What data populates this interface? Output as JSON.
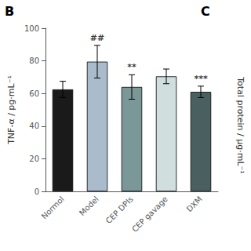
{
  "chart_data": {
    "type": "bar",
    "categories": [
      "Normol",
      "Model",
      "CEP DPIs",
      "CEP gavage",
      "DXM"
    ],
    "values": [
      62.5,
      79.5,
      64.0,
      70.5,
      61.0
    ],
    "errors": [
      5.0,
      10.0,
      7.5,
      4.5,
      3.5
    ],
    "colors": [
      "#1a1a1a",
      "#aabccc",
      "#7a9898",
      "#d0dede",
      "#4a6060"
    ],
    "ylabel": "TNF-α / pg·mL⁻¹",
    "ylim": [
      0,
      100
    ],
    "yticks": [
      0,
      20,
      40,
      60,
      80,
      100
    ],
    "grid": false,
    "annotations": [
      {
        "category": "Model",
        "text": "##"
      },
      {
        "category": "CEP DPIs",
        "text": "**"
      },
      {
        "category": "DXM",
        "text": "***"
      }
    ],
    "panel_labels": [
      "B",
      "C"
    ],
    "y2label": "Total protein / μg·mL⁻¹"
  }
}
